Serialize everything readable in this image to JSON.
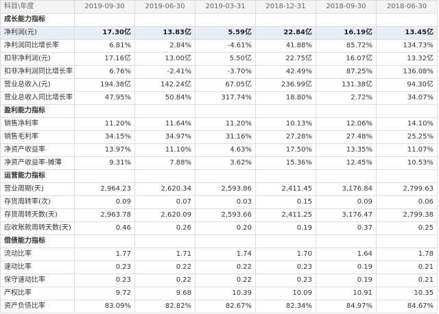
{
  "header": {
    "corner": "科目\\年度",
    "dates": [
      "2019-09-30",
      "2019-06-30",
      "2019-03-31",
      "2018-12-31",
      "2018-09-30",
      "2018-06-30"
    ]
  },
  "rows": [
    {
      "label": "成长能力指标",
      "section": true,
      "values": [
        "",
        "",
        "",
        "",
        "",
        ""
      ]
    },
    {
      "label": "净利润(元)",
      "highlight": true,
      "values": [
        "17.30亿",
        "13.83亿",
        "5.59亿",
        "22.84亿",
        "16.19亿",
        "13.45亿"
      ]
    },
    {
      "label": "净利润同比增长率",
      "values": [
        "6.81%",
        "2.84%",
        "-4.61%",
        "41.88%",
        "85.72%",
        "134.73%"
      ]
    },
    {
      "label": "扣非净利润(元)",
      "values": [
        "17.16亿",
        "13.00亿",
        "5.50亿",
        "22.75亿",
        "16.07亿",
        "13.32亿"
      ]
    },
    {
      "label": "扣非净利润同比增长率",
      "values": [
        "6.76%",
        "-2.41%",
        "-3.70%",
        "42.49%",
        "87.25%",
        "136.08%"
      ]
    },
    {
      "label": "营业总收入(元)",
      "values": [
        "194.38亿",
        "142.24亿",
        "67.05亿",
        "236.99亿",
        "131.38亿",
        "94.30亿"
      ]
    },
    {
      "label": "营业总收入同比增长率",
      "values": [
        "47.95%",
        "50.84%",
        "317.74%",
        "18.80%",
        "2.72%",
        "34.07%"
      ]
    },
    {
      "label": "盈利能力指标",
      "section": true,
      "values": [
        "",
        "",
        "",
        "",
        "",
        ""
      ]
    },
    {
      "label": "销售净利率",
      "values": [
        "11.20%",
        "11.64%",
        "11.20%",
        "10.13%",
        "12.06%",
        "14.10%"
      ]
    },
    {
      "label": "销售毛利率",
      "values": [
        "34.15%",
        "34.97%",
        "31.16%",
        "27.28%",
        "27.48%",
        "25.25%"
      ]
    },
    {
      "label": "净资产收益率",
      "values": [
        "13.97%",
        "11.10%",
        "4.63%",
        "17.50%",
        "13.35%",
        "11.07%"
      ]
    },
    {
      "label": "净资产收益率-摊薄",
      "values": [
        "9.31%",
        "7.88%",
        "3.62%",
        "15.36%",
        "12.45%",
        "10.53%"
      ]
    },
    {
      "label": "运营能力指标",
      "section": true,
      "values": [
        "",
        "",
        "",
        "",
        "",
        ""
      ]
    },
    {
      "label": "营业周期(天)",
      "values": [
        "2,964.23",
        "2,620.34",
        "2,593.86",
        "2,411.45",
        "3,176.84",
        "2,799.63"
      ]
    },
    {
      "label": "存货周转率(次)",
      "values": [
        "0.09",
        "0.07",
        "0.03",
        "0.15",
        "0.09",
        "0.06"
      ]
    },
    {
      "label": "存货周转天数(天)",
      "values": [
        "2,963.78",
        "2,620.09",
        "2,593.66",
        "2,411.25",
        "3,176.47",
        "2,799.38"
      ]
    },
    {
      "label": "应收账款周转天数(天)",
      "values": [
        "0.46",
        "0.26",
        "0.20",
        "0.19",
        "0.37",
        "0.25"
      ]
    },
    {
      "label": "偿债能力指标",
      "section": true,
      "values": [
        "",
        "",
        "",
        "",
        "",
        ""
      ]
    },
    {
      "label": "流动比率",
      "values": [
        "1.77",
        "1.71",
        "1.74",
        "1.70",
        "1.64",
        "1.78"
      ]
    },
    {
      "label": "速动比率",
      "values": [
        "0.23",
        "0.22",
        "0.22",
        "0.23",
        "0.19",
        "0.21"
      ]
    },
    {
      "label": "保守速动比率",
      "values": [
        "0.23",
        "0.22",
        "0.22",
        "0.23",
        "0.19",
        "0.21"
      ]
    },
    {
      "label": "产权比率",
      "values": [
        "9.72",
        "9.68",
        "10.39",
        "10.09",
        "10.91",
        "10.35"
      ]
    },
    {
      "label": "资产负债比率",
      "values": [
        "83.09%",
        "82.82%",
        "82.67%",
        "82.34%",
        "84.97%",
        "84.67%"
      ]
    }
  ]
}
